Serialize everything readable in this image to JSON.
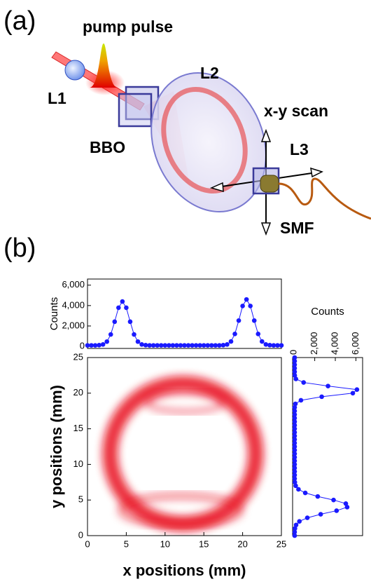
{
  "panels": {
    "a": "(a)",
    "b": "(b)"
  },
  "diagram": {
    "pump": "pump pulse",
    "l1": "L1",
    "l2": "L2",
    "bbo": "BBO",
    "scan": "x-y scan",
    "l3": "L3",
    "smf": "SMF"
  },
  "chart_data": [
    {
      "type": "line",
      "ylabel": "Counts",
      "color": "#1a1aff",
      "x": [
        0,
        0.5,
        1,
        1.5,
        2,
        2.5,
        3,
        3.5,
        4,
        4.5,
        5,
        5.5,
        6,
        6.5,
        7,
        7.5,
        8,
        8.5,
        9,
        9.5,
        10,
        10.5,
        11,
        11.5,
        12,
        12.5,
        13,
        13.5,
        14,
        14.5,
        15,
        15.5,
        16,
        16.5,
        17,
        17.5,
        18,
        18.5,
        19,
        19.5,
        20,
        20.5,
        21,
        21.5,
        22,
        22.5,
        23,
        23.5,
        24,
        24.5,
        25
      ],
      "values": [
        100,
        100,
        100,
        120,
        190,
        470,
        1170,
        2420,
        3790,
        4400,
        3790,
        2420,
        1170,
        470,
        190,
        120,
        100,
        100,
        100,
        100,
        100,
        100,
        100,
        100,
        100,
        100,
        100,
        100,
        100,
        100,
        100,
        100,
        100,
        100,
        100,
        120,
        190,
        480,
        1220,
        2530,
        3960,
        4600,
        3960,
        2530,
        1220,
        480,
        190,
        120,
        100,
        100,
        100
      ],
      "xlim": [
        0,
        25
      ],
      "ylim": [
        -200,
        6600
      ],
      "yticks": [
        {
          "value": 0,
          "label": "0"
        },
        {
          "value": 2000,
          "label": "2,000"
        },
        {
          "value": 4000,
          "label": "4,000"
        },
        {
          "value": 6000,
          "label": "6,000"
        }
      ]
    },
    {
      "type": "heatmap",
      "xlabel": "x positions (mm)",
      "ylabel": "y positions (mm)",
      "color": "#e8101a",
      "xlim": [
        0,
        25
      ],
      "ylim": [
        0,
        25
      ],
      "xticks": [
        0,
        5,
        10,
        15,
        20,
        25
      ],
      "yticks": [
        0,
        5,
        10,
        15,
        20,
        25
      ]
    },
    {
      "type": "hline",
      "xlabel": "Counts",
      "color": "#1a1aff",
      "y": [
        0,
        0.5,
        1,
        1.5,
        2,
        2.5,
        3,
        3.5,
        4,
        4.5,
        5,
        5.5,
        6,
        6.5,
        7,
        7.5,
        8,
        8.5,
        9,
        9.5,
        10,
        10.5,
        11,
        11.5,
        12,
        12.5,
        13,
        13.5,
        14,
        14.5,
        15,
        15.5,
        16,
        16.5,
        17,
        17.5,
        18,
        18.5,
        19,
        19.5,
        20,
        20.5,
        21,
        21.5,
        22,
        22.5,
        23,
        23.5,
        24,
        24.5,
        25
      ],
      "values": [
        50,
        50,
        80,
        190,
        510,
        1280,
        2580,
        4120,
        5150,
        5020,
        3830,
        2290,
        1080,
        420,
        150,
        70,
        50,
        50,
        50,
        50,
        50,
        50,
        50,
        50,
        50,
        50,
        50,
        50,
        50,
        50,
        50,
        50,
        50,
        50,
        50,
        50,
        50,
        120,
        660,
        2680,
        5700,
        6100,
        3290,
        920,
        170,
        60,
        50,
        50,
        50,
        50,
        50
      ],
      "xlim": [
        -150,
        6650
      ],
      "ylim": [
        0,
        25
      ],
      "xticks": [
        {
          "value": 0,
          "label": "0"
        },
        {
          "value": 2000,
          "label": "2,000"
        },
        {
          "value": 4000,
          "label": "4,000"
        },
        {
          "value": 6000,
          "label": "6,000"
        }
      ]
    }
  ]
}
